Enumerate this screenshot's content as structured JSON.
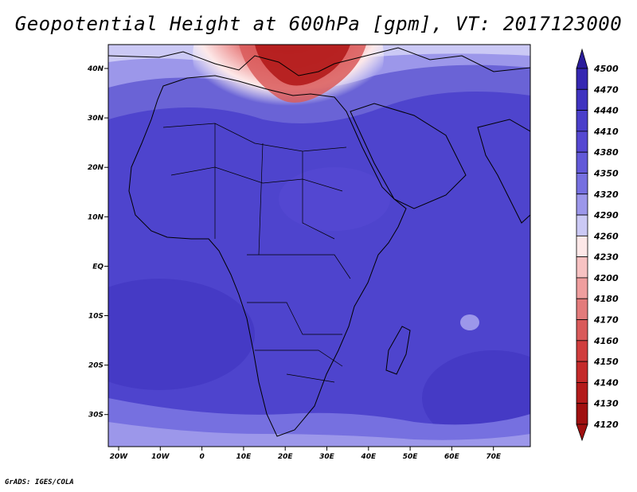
{
  "title": "Geopotential Height at 600hPa [gpm], VT: 2017123000",
  "credit": "GrADS: IGES/COLA",
  "map": {
    "lon_labels": [
      "20W",
      "10W",
      "0",
      "10E",
      "20E",
      "30E",
      "40E",
      "50E",
      "60E",
      "70E"
    ],
    "lat_labels": [
      "40N",
      "30N",
      "20N",
      "10N",
      "EQ",
      "10S",
      "20S",
      "30S"
    ]
  },
  "colorbar": {
    "levels": [
      "4500",
      "4470",
      "4440",
      "4410",
      "4380",
      "4350",
      "4320",
      "4290",
      "4260",
      "4230",
      "4200",
      "4180",
      "4170",
      "4160",
      "4150",
      "4140",
      "4130",
      "4120"
    ],
    "colors": [
      "#2b1d9b",
      "#3527b2",
      "#3f33c0",
      "#4a3fca",
      "#5548d2",
      "#6259d8",
      "#7670e0",
      "#9c97ea",
      "#cbc9f5",
      "#fde8e8",
      "#f7c2c2",
      "#ef9e9e",
      "#e37b7b",
      "#d95a5a",
      "#d03d3d",
      "#c42a2a",
      "#b31b1b",
      "#a01010"
    ]
  },
  "colors": {
    "main_field": "#4e44cd",
    "lighter_band": "#6a63d6",
    "high_red": "#b42020",
    "coast": "#000000"
  }
}
